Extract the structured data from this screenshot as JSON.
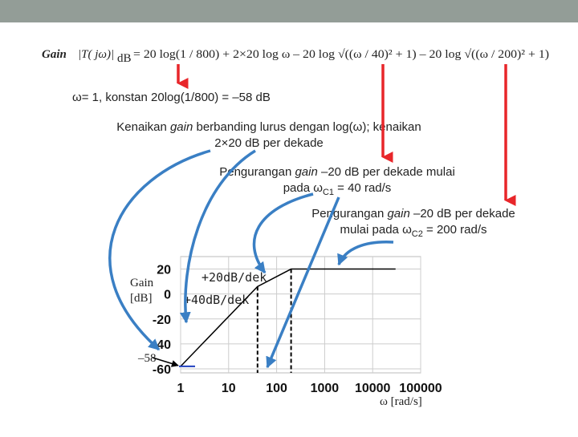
{
  "equation": {
    "label": "Gain",
    "lhs": "|T( jω)|",
    "lhs_sub": "dB",
    "rhs": "= 20 log(1 / 800) + 2×20 log ω – 20 log √((ω / 40)² + 1) – 20 log √((ω / 200)² + 1)"
  },
  "notes": [
    {
      "lines": [
        [
          "ω= 1, konstan 20log(1/800) = –58 dB"
        ]
      ]
    },
    {
      "lines": [
        [
          "Kenaikan ",
          "gain",
          " berbanding lurus dengan log(ω); kenaikan"
        ],
        [
          "2×20 dB per dekade"
        ]
      ]
    },
    {
      "lines": [
        [
          "Pengurangan ",
          "gain",
          " –20 dB per dekade mulai"
        ],
        [
          "pada ω",
          "C1",
          " = 40 rad/s"
        ]
      ]
    },
    {
      "lines": [
        [
          "Pengurangan ",
          "gain",
          " –20 dB per dekade"
        ],
        [
          "mulai pada ω",
          "C2",
          " = 200 rad/s"
        ]
      ]
    }
  ],
  "chart_data": {
    "type": "line",
    "x": [
      1,
      40,
      200,
      30000
    ],
    "values": [
      -58,
      6,
      20,
      20
    ],
    "color": "#000000",
    "xscale": "log",
    "xlim": [
      1,
      100000
    ],
    "xticks": [
      1,
      10,
      100,
      1000,
      10000,
      100000
    ],
    "ylim": [
      -60,
      30
    ],
    "yticks": [
      20,
      0,
      -20,
      -40,
      -60
    ],
    "grid": true,
    "ylabel": [
      "Gain",
      "[dB]"
    ],
    "xlabel": "ω [rad/s]",
    "slope_labels": [
      "+20dB/dek",
      "+40dB/dek"
    ],
    "breakpoints": [
      40,
      200
    ],
    "annotations": [
      {
        "value": -58,
        "label": "–58"
      }
    ]
  }
}
